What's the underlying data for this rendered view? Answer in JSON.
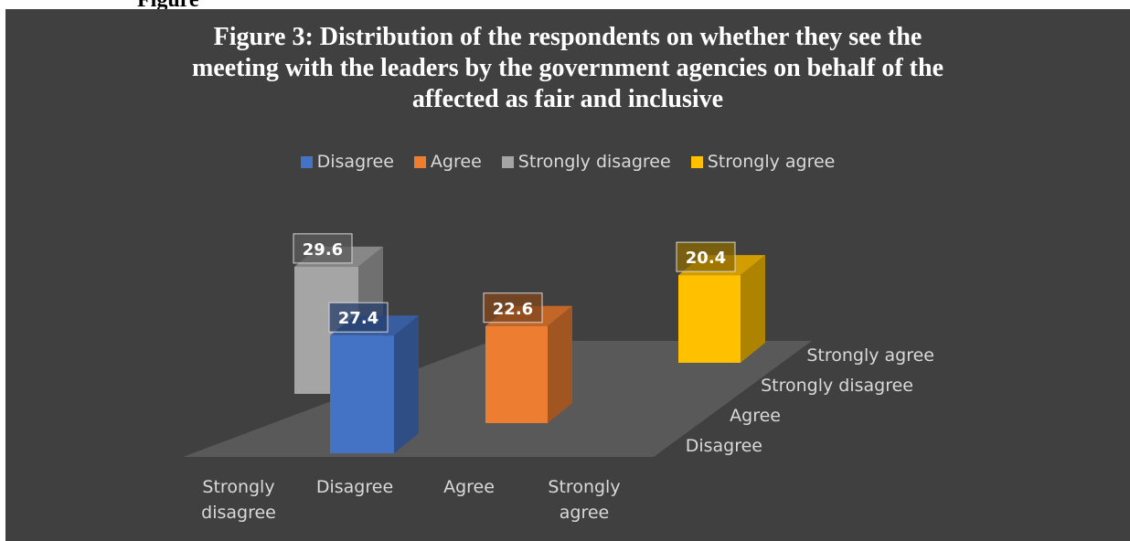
{
  "page": {
    "top_cut_text": "Figure"
  },
  "chart_data": {
    "type": "bar",
    "title_lines": [
      "Figure 3: Distribution of the respondents on whether they see the",
      "meeting with the leaders by the government agencies on behalf of the",
      "affected as fair and inclusive"
    ],
    "categories": [
      "Strongly disagree",
      "Disagree",
      "Agree",
      "Strongly agree"
    ],
    "depth_categories": [
      "Strongly agree",
      "Strongly disagree",
      "Agree",
      "Disagree"
    ],
    "series": [
      {
        "name": "Disagree",
        "category": "Disagree",
        "value": 27.4,
        "color": "#4472c4"
      },
      {
        "name": "Agree",
        "category": "Agree",
        "value": 22.6,
        "color": "#ed7d31"
      },
      {
        "name": "Strongly disagree",
        "category": "Strongly disagree",
        "value": 29.6,
        "color": "#a5a5a5"
      },
      {
        "name": "Strongly agree",
        "category": "Strongly agree",
        "value": 20.4,
        "color": "#ffc000"
      }
    ],
    "legend_position": "top",
    "grid": false,
    "background": "#404040",
    "floor_color": "#595959",
    "text_color": "#d9d9d9"
  }
}
